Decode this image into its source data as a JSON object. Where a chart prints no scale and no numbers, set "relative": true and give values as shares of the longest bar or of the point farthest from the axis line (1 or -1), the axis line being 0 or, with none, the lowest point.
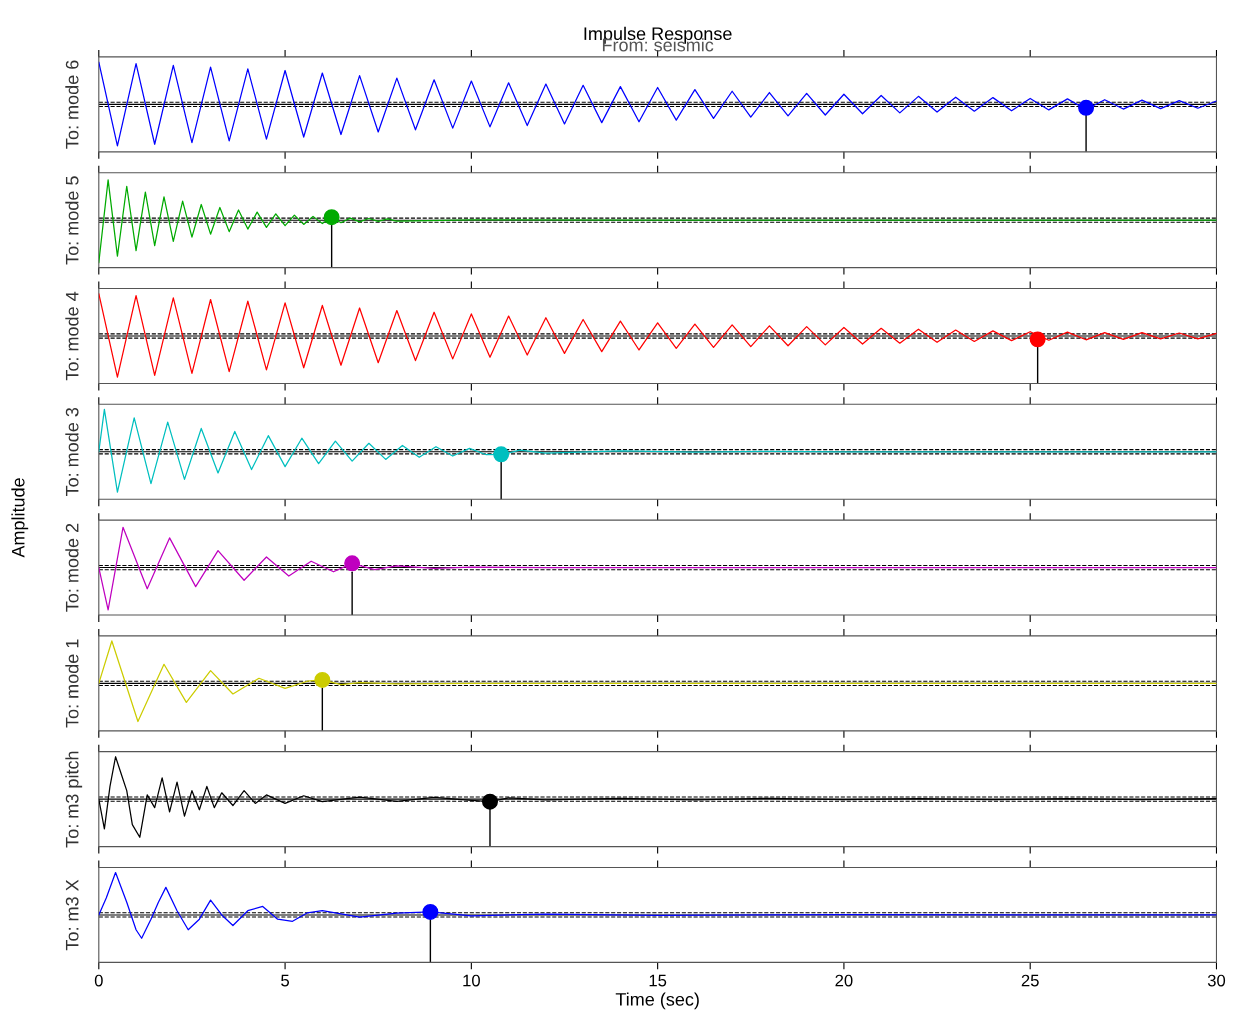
{
  "chart_data": [
    {
      "type": "line",
      "title": "Impulse Response",
      "subtitle": "From: seismic",
      "ylabel": "To: mode 6",
      "annotations": [
        "Amplitude"
      ],
      "relative": true,
      "xlim": [
        0,
        30
      ],
      "xticks": [
        0,
        5,
        10,
        15,
        20,
        25,
        30
      ],
      "tick_labels": false,
      "grid": false,
      "legend": false,
      "x": [
        0,
        0.5,
        1,
        1.5,
        2,
        2.5,
        3,
        3.5,
        4,
        4.5,
        5,
        5.5,
        6,
        6.5,
        7,
        7.5,
        8,
        8.5,
        9,
        9.5,
        10,
        10.5,
        11,
        11.5,
        12,
        12.5,
        13,
        13.5,
        14,
        14.5,
        15,
        15.5,
        16,
        16.5,
        17,
        17.5,
        18,
        18.5,
        19,
        19.5,
        20,
        20.5,
        21,
        21.5,
        22,
        22.5,
        23,
        23.5,
        24,
        24.5,
        25,
        25.5,
        26,
        26.5,
        27,
        27.5,
        28,
        28.5,
        29,
        29.5,
        30
      ],
      "series": [
        {
          "color": "#0000ff",
          "values": [
            1.0,
            -0.98,
            0.96,
            -0.94,
            0.92,
            -0.9,
            0.88,
            -0.86,
            0.84,
            -0.82,
            0.8,
            -0.77,
            0.74,
            -0.71,
            0.68,
            -0.65,
            0.62,
            -0.6,
            0.58,
            -0.56,
            0.55,
            -0.53,
            0.51,
            -0.5,
            0.48,
            -0.46,
            0.45,
            -0.43,
            0.42,
            -0.41,
            0.4,
            -0.37,
            0.35,
            -0.33,
            0.31,
            -0.3,
            0.28,
            -0.27,
            0.26,
            -0.25,
            0.24,
            -0.22,
            0.21,
            -0.2,
            0.19,
            -0.18,
            0.17,
            -0.16,
            0.16,
            -0.15,
            0.14,
            -0.13,
            0.13,
            -0.12,
            0.11,
            -0.11,
            0.1,
            -0.1,
            0.09,
            -0.09,
            0.08
          ]
        },
        {
          "type": "scatter",
          "marker": "circle",
          "color": "#0000ff",
          "x": [
            26.5
          ],
          "values": [
            -0.08
          ]
        }
      ],
      "ref_lines": [
        {
          "axis": "y",
          "value": 0,
          "color": "#000000",
          "line_style": "solid"
        },
        {
          "axis": "y",
          "value": 0.05,
          "color": "#000000",
          "line_style": "dashed"
        },
        {
          "axis": "y",
          "value": -0.05,
          "color": "#000000",
          "line_style": "dashed"
        },
        {
          "axis": "x",
          "value": 26.5,
          "color": "#000000",
          "line_style": "solid"
        }
      ]
    },
    {
      "type": "line",
      "ylabel": "To: mode 5",
      "relative": true,
      "xlim": [
        0,
        30
      ],
      "xticks": [
        0,
        5,
        10,
        15,
        20,
        25,
        30
      ],
      "tick_labels": false,
      "grid": false,
      "legend": false,
      "x": [
        0,
        0.25,
        0.5,
        0.75,
        1,
        1.25,
        1.5,
        1.75,
        2,
        2.25,
        2.5,
        2.75,
        3,
        3.25,
        3.5,
        3.75,
        4,
        4.25,
        4.5,
        4.75,
        5,
        5.25,
        5.5,
        5.75,
        6,
        6.25,
        6.5,
        6.75,
        7,
        7.25,
        7.5,
        7.75,
        8,
        10,
        15,
        20,
        25,
        30
      ],
      "series": [
        {
          "color": "#00aa00",
          "values": [
            -1.0,
            0.95,
            -0.85,
            0.8,
            -0.72,
            0.66,
            -0.6,
            0.55,
            -0.5,
            0.45,
            -0.4,
            0.37,
            -0.33,
            0.3,
            -0.27,
            0.24,
            -0.21,
            0.19,
            -0.17,
            0.15,
            -0.13,
            0.12,
            -0.1,
            0.09,
            -0.08,
            0.07,
            -0.06,
            0.05,
            -0.04,
            0.04,
            -0.03,
            0.03,
            -0.02,
            0.01,
            0,
            0,
            0,
            0
          ]
        },
        {
          "type": "scatter",
          "marker": "circle",
          "color": "#00aa00",
          "x": [
            6.25
          ],
          "values": [
            0.07
          ]
        }
      ],
      "ref_lines": [
        {
          "axis": "y",
          "value": 0,
          "color": "#000000",
          "line_style": "solid"
        },
        {
          "axis": "y",
          "value": 0.05,
          "color": "#000000",
          "line_style": "dashed"
        },
        {
          "axis": "y",
          "value": -0.05,
          "color": "#000000",
          "line_style": "dashed"
        },
        {
          "axis": "x",
          "value": 6.25,
          "color": "#000000",
          "line_style": "solid"
        }
      ]
    },
    {
      "type": "line",
      "ylabel": "To: mode 4",
      "relative": true,
      "xlim": [
        0,
        30
      ],
      "xticks": [
        0,
        5,
        10,
        15,
        20,
        25,
        30
      ],
      "tick_labels": false,
      "grid": false,
      "legend": false,
      "x": [
        0,
        0.5,
        1,
        1.5,
        2,
        2.5,
        3,
        3.5,
        4,
        4.5,
        5,
        5.5,
        6,
        6.5,
        7,
        7.5,
        8,
        8.5,
        9,
        9.5,
        10,
        10.5,
        11,
        11.5,
        12,
        12.5,
        13,
        13.5,
        14,
        14.5,
        15,
        15.5,
        16,
        16.5,
        17,
        17.5,
        18,
        18.5,
        19,
        19.5,
        20,
        20.5,
        21,
        21.5,
        22,
        22.5,
        23,
        23.5,
        24,
        24.5,
        25,
        25.5,
        26,
        26.5,
        27,
        27.5,
        28,
        28.5,
        29,
        29.5,
        30
      ],
      "series": [
        {
          "color": "#ff0000",
          "values": [
            1.0,
            -0.97,
            0.95,
            -0.93,
            0.9,
            -0.88,
            0.86,
            -0.84,
            0.82,
            -0.8,
            0.78,
            -0.75,
            0.72,
            -0.69,
            0.66,
            -0.63,
            0.6,
            -0.58,
            0.56,
            -0.54,
            0.52,
            -0.5,
            0.47,
            -0.45,
            0.43,
            -0.41,
            0.39,
            -0.37,
            0.35,
            -0.33,
            0.31,
            -0.29,
            0.28,
            -0.27,
            0.26,
            -0.25,
            0.24,
            -0.23,
            0.22,
            -0.21,
            0.2,
            -0.19,
            0.18,
            -0.17,
            0.16,
            -0.15,
            0.14,
            -0.13,
            0.12,
            -0.11,
            0.1,
            -0.1,
            0.09,
            -0.09,
            0.08,
            -0.08,
            0.08,
            -0.07,
            0.07,
            -0.07,
            0.06
          ]
        },
        {
          "type": "scatter",
          "marker": "circle",
          "color": "#ff0000",
          "x": [
            25.2
          ],
          "values": [
            -0.08
          ]
        }
      ],
      "ref_lines": [
        {
          "axis": "y",
          "value": 0,
          "color": "#000000",
          "line_style": "solid"
        },
        {
          "axis": "y",
          "value": 0.05,
          "color": "#000000",
          "line_style": "dashed"
        },
        {
          "axis": "y",
          "value": -0.05,
          "color": "#000000",
          "line_style": "dashed"
        },
        {
          "axis": "x",
          "value": 25.2,
          "color": "#000000",
          "line_style": "solid"
        }
      ]
    },
    {
      "type": "line",
      "ylabel": "To: mode 3",
      "relative": true,
      "xlim": [
        0,
        30
      ],
      "xticks": [
        0,
        5,
        10,
        15,
        20,
        25,
        30
      ],
      "tick_labels": false,
      "grid": false,
      "legend": false,
      "x": [
        0,
        0.15,
        0.5,
        0.95,
        1.4,
        1.85,
        2.3,
        2.75,
        3.2,
        3.65,
        4.1,
        4.55,
        5.0,
        5.45,
        5.9,
        6.35,
        6.8,
        7.25,
        7.7,
        8.15,
        8.6,
        9.05,
        9.5,
        9.95,
        10.4,
        10.85,
        11.3,
        12,
        14,
        16,
        18,
        20,
        22,
        24,
        26,
        28,
        30
      ],
      "series": [
        {
          "color": "#00bfbf",
          "values": [
            0,
            1.0,
            -0.95,
            0.8,
            -0.75,
            0.7,
            -0.65,
            0.55,
            -0.5,
            0.48,
            -0.42,
            0.38,
            -0.35,
            0.32,
            -0.28,
            0.25,
            -0.22,
            0.2,
            -0.18,
            0.15,
            -0.13,
            0.12,
            -0.1,
            0.08,
            -0.07,
            -0.06,
            0.04,
            -0.03,
            0.02,
            -0.01,
            0.01,
            0,
            0,
            0,
            0,
            0,
            0
          ]
        },
        {
          "type": "scatter",
          "marker": "circle",
          "color": "#00bfbf",
          "x": [
            10.8
          ],
          "values": [
            -0.06
          ]
        }
      ],
      "ref_lines": [
        {
          "axis": "y",
          "value": 0,
          "color": "#000000",
          "line_style": "solid"
        },
        {
          "axis": "y",
          "value": 0.05,
          "color": "#000000",
          "line_style": "dashed"
        },
        {
          "axis": "y",
          "value": -0.05,
          "color": "#000000",
          "line_style": "dashed"
        },
        {
          "axis": "x",
          "value": 10.8,
          "color": "#000000",
          "line_style": "solid"
        }
      ]
    },
    {
      "type": "line",
      "ylabel": "To: mode 2",
      "relative": true,
      "xlim": [
        0,
        30
      ],
      "xticks": [
        0,
        5,
        10,
        15,
        20,
        25,
        30
      ],
      "tick_labels": false,
      "grid": false,
      "legend": false,
      "x": [
        0,
        0.25,
        0.65,
        1.3,
        1.9,
        2.6,
        3.2,
        3.9,
        4.5,
        5.1,
        5.7,
        6.3,
        6.8,
        7.4,
        8,
        9,
        10,
        12,
        15,
        20,
        25,
        30
      ],
      "series": [
        {
          "color": "#bf00bf",
          "values": [
            0,
            -1.0,
            0.95,
            -0.5,
            0.7,
            -0.45,
            0.4,
            -0.3,
            0.25,
            -0.2,
            0.15,
            -0.1,
            0.1,
            -0.05,
            0.04,
            -0.02,
            0.01,
            0,
            0,
            0,
            0,
            0
          ]
        },
        {
          "type": "scatter",
          "marker": "circle",
          "color": "#bf00bf",
          "x": [
            6.8
          ],
          "values": [
            0.1
          ]
        }
      ],
      "ref_lines": [
        {
          "axis": "y",
          "value": 0,
          "color": "#000000",
          "line_style": "solid"
        },
        {
          "axis": "y",
          "value": 0.05,
          "color": "#000000",
          "line_style": "dashed"
        },
        {
          "axis": "y",
          "value": -0.05,
          "color": "#000000",
          "line_style": "dashed"
        },
        {
          "axis": "x",
          "value": 6.8,
          "color": "#000000",
          "line_style": "solid"
        }
      ]
    },
    {
      "type": "line",
      "ylabel": "To: mode 1",
      "relative": true,
      "xlim": [
        0,
        30
      ],
      "xticks": [
        0,
        5,
        10,
        15,
        20,
        25,
        30
      ],
      "tick_labels": false,
      "grid": false,
      "legend": false,
      "x": [
        0,
        0.35,
        1.05,
        1.75,
        2.35,
        3.0,
        3.6,
        4.3,
        5.0,
        5.6,
        6.0,
        6.5,
        7,
        8,
        10,
        15,
        20,
        25,
        30
      ],
      "series": [
        {
          "color": "#cccc00",
          "values": [
            0,
            1.0,
            -0.9,
            0.45,
            -0.45,
            0.3,
            -0.25,
            0.12,
            -0.12,
            0.05,
            0.08,
            -0.03,
            0.02,
            -0.01,
            0,
            0,
            0,
            0,
            0
          ]
        },
        {
          "type": "scatter",
          "marker": "circle",
          "color": "#cccc00",
          "x": [
            6.0
          ],
          "values": [
            0.08
          ]
        }
      ],
      "ref_lines": [
        {
          "axis": "y",
          "value": 0,
          "color": "#000000",
          "line_style": "solid"
        },
        {
          "axis": "y",
          "value": 0.05,
          "color": "#000000",
          "line_style": "dashed"
        },
        {
          "axis": "y",
          "value": -0.05,
          "color": "#000000",
          "line_style": "dashed"
        },
        {
          "axis": "x",
          "value": 6.0,
          "color": "#000000",
          "line_style": "solid"
        }
      ]
    },
    {
      "type": "line",
      "ylabel": "To: m3 pitch",
      "relative": true,
      "xlim": [
        0,
        30
      ],
      "xticks": [
        0,
        5,
        10,
        15,
        20,
        25,
        30
      ],
      "tick_labels": false,
      "grid": false,
      "legend": false,
      "x": [
        0,
        0.15,
        0.3,
        0.45,
        0.6,
        0.75,
        0.9,
        1.1,
        1.3,
        1.5,
        1.7,
        1.9,
        2.1,
        2.3,
        2.5,
        2.7,
        2.9,
        3.1,
        3.3,
        3.6,
        3.9,
        4.2,
        4.5,
        5,
        5.5,
        6,
        7,
        8,
        9,
        10,
        10.5,
        11,
        12,
        14,
        16,
        18,
        20,
        22,
        24,
        26,
        28,
        30
      ],
      "series": [
        {
          "color": "#000000",
          "values": [
            0,
            -0.7,
            0.3,
            1.0,
            0.6,
            0.2,
            -0.6,
            -0.9,
            0.1,
            -0.2,
            0.5,
            -0.3,
            0.4,
            -0.4,
            0.2,
            -0.25,
            0.3,
            -0.2,
            0.15,
            -0.15,
            0.2,
            -0.1,
            0.1,
            -0.1,
            0.08,
            -0.06,
            0.05,
            -0.05,
            0.04,
            -0.03,
            -0.06,
            0.03,
            -0.02,
            0.02,
            -0.02,
            0.02,
            -0.01,
            0.01,
            -0.01,
            0.01,
            -0.01,
            0.01
          ]
        },
        {
          "type": "scatter",
          "marker": "circle",
          "color": "#000000",
          "x": [
            10.5
          ],
          "values": [
            -0.06
          ]
        }
      ],
      "ref_lines": [
        {
          "axis": "y",
          "value": 0,
          "color": "#000000",
          "line_style": "solid"
        },
        {
          "axis": "y",
          "value": 0.05,
          "color": "#000000",
          "line_style": "dashed"
        },
        {
          "axis": "y",
          "value": -0.05,
          "color": "#000000",
          "line_style": "dashed"
        },
        {
          "axis": "x",
          "value": 10.5,
          "color": "#000000",
          "line_style": "solid"
        }
      ]
    },
    {
      "type": "line",
      "ylabel": "To: m3 X",
      "xlabel": "Time (sec)",
      "relative": true,
      "xlim": [
        0,
        30
      ],
      "xticks": [
        0,
        5,
        10,
        15,
        20,
        25,
        30
      ],
      "tick_labels": "x",
      "grid": false,
      "legend": false,
      "x": [
        0,
        0.2,
        0.45,
        0.75,
        1.0,
        1.15,
        1.4,
        1.6,
        1.8,
        2.1,
        2.4,
        2.7,
        3.0,
        3.3,
        3.6,
        4.0,
        4.4,
        4.8,
        5.2,
        5.6,
        6.0,
        7,
        8,
        8.9,
        10,
        12,
        15,
        20,
        25,
        30
      ],
      "series": [
        {
          "color": "#0000ff",
          "values": [
            0,
            0.4,
            1.0,
            0.3,
            -0.35,
            -0.55,
            -0.1,
            0.3,
            0.65,
            0.1,
            -0.35,
            -0.1,
            0.35,
            0.0,
            -0.25,
            0.1,
            0.2,
            -0.1,
            -0.15,
            0.05,
            0.1,
            -0.05,
            0.04,
            0.07,
            -0.02,
            0.02,
            -0.01,
            0.01,
            0,
            0
          ]
        },
        {
          "type": "scatter",
          "marker": "circle",
          "color": "#0000ff",
          "x": [
            8.9
          ],
          "values": [
            0.07
          ]
        }
      ],
      "ref_lines": [
        {
          "axis": "y",
          "value": 0,
          "color": "#000000",
          "line_style": "solid"
        },
        {
          "axis": "y",
          "value": 0.05,
          "color": "#000000",
          "line_style": "dashed"
        },
        {
          "axis": "y",
          "value": -0.05,
          "color": "#000000",
          "line_style": "dashed"
        },
        {
          "axis": "x",
          "value": 8.9,
          "color": "#000000",
          "line_style": "solid"
        }
      ]
    }
  ]
}
